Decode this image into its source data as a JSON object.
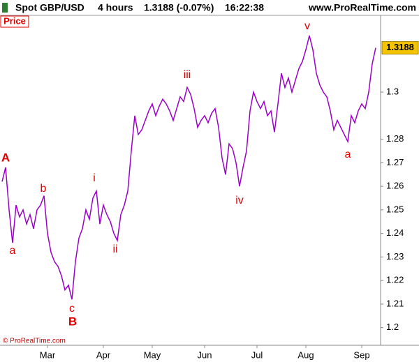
{
  "header": {
    "instrument": "Spot GBP/USD",
    "timeframe": "4 hours",
    "quote": "1.3188 (-0.07%)",
    "time": "16:22:38",
    "site": "www.ProRealTime.com"
  },
  "footer": {
    "copyright": "© ProRealTime.com"
  },
  "chart_data": {
    "type": "line",
    "panel_label": "Price",
    "categories": [
      null,
      null,
      null,
      null,
      null,
      null,
      null,
      null,
      null,
      null,
      null,
      null,
      null,
      "Mar",
      null,
      null,
      null,
      null,
      null,
      null,
      null,
      null,
      null,
      null,
      null,
      null,
      null,
      null,
      null,
      "Apr",
      null,
      null,
      null,
      null,
      null,
      null,
      null,
      null,
      null,
      null,
      null,
      null,
      null,
      "May",
      null,
      null,
      null,
      null,
      null,
      null,
      null,
      null,
      null,
      null,
      null,
      null,
      null,
      null,
      "Jun",
      null,
      null,
      null,
      null,
      null,
      null,
      null,
      null,
      null,
      null,
      null,
      null,
      null,
      null,
      "Jul",
      null,
      null,
      null,
      null,
      null,
      null,
      null,
      null,
      null,
      null,
      null,
      null,
      null,
      "Aug",
      null,
      null,
      null,
      null,
      null,
      null,
      null,
      null,
      null,
      null,
      null,
      null,
      null,
      null,
      null,
      "Sep",
      null,
      null,
      null,
      null
    ],
    "series": [
      {
        "name": "Spot GBP/USD",
        "color": "#9b00c8",
        "values": [
          1.262,
          1.268,
          1.25,
          1.236,
          1.252,
          1.247,
          1.25,
          1.244,
          1.248,
          1.242,
          1.25,
          1.252,
          1.256,
          1.24,
          1.232,
          1.228,
          1.226,
          1.222,
          1.216,
          1.218,
          1.212,
          1.228,
          1.238,
          1.242,
          1.25,
          1.246,
          1.255,
          1.258,
          1.244,
          1.252,
          1.248,
          1.245,
          1.24,
          1.237,
          1.248,
          1.252,
          1.258,
          1.275,
          1.29,
          1.282,
          1.284,
          1.288,
          1.292,
          1.295,
          1.29,
          1.294,
          1.297,
          1.295,
          1.292,
          1.288,
          1.293,
          1.298,
          1.296,
          1.302,
          1.299,
          1.293,
          1.285,
          1.288,
          1.29,
          1.287,
          1.291,
          1.293,
          1.285,
          1.272,
          1.265,
          1.278,
          1.276,
          1.27,
          1.26,
          1.268,
          1.275,
          1.292,
          1.3,
          1.296,
          1.293,
          1.296,
          1.29,
          1.292,
          1.283,
          1.295,
          1.308,
          1.302,
          1.306,
          1.3,
          1.305,
          1.31,
          1.313,
          1.318,
          1.324,
          1.318,
          1.308,
          1.303,
          1.3,
          1.298,
          1.292,
          1.284,
          1.288,
          1.285,
          1.282,
          1.279,
          1.29,
          1.287,
          1.292,
          1.295,
          1.293,
          1.3,
          1.312,
          1.3188
        ]
      }
    ],
    "last_price": 1.3188,
    "last_price_color": "#f5c400",
    "ylim": [
      1.1925,
      1.3326
    ],
    "yticks": [
      1.2,
      1.21,
      1.22,
      1.23,
      1.24,
      1.25,
      1.26,
      1.27,
      1.28,
      1.3
    ],
    "annotations": [
      "A",
      "a",
      "b",
      "c",
      "B",
      "i",
      "ii",
      "iii",
      "iv",
      "v",
      "a"
    ]
  }
}
